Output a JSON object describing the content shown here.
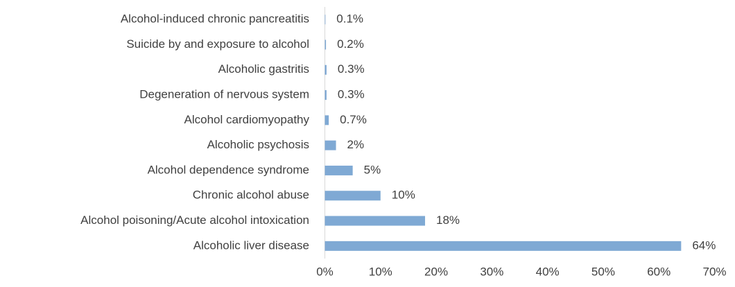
{
  "chart_data": {
    "type": "bar",
    "orientation": "horizontal",
    "categories": [
      "Alcohol-induced chronic pancreatitis",
      "Suicide by and exposure to alcohol",
      "Alcoholic gastritis",
      "Degeneration of nervous system",
      "Alcohol cardiomyopathy",
      "Alcoholic psychosis",
      "Alcohol dependence syndrome",
      "Chronic alcohol abuse",
      "Alcohol poisoning/Acute alcohol intoxication",
      "Alcoholic liver disease"
    ],
    "values": [
      0.1,
      0.2,
      0.3,
      0.3,
      0.7,
      2,
      5,
      10,
      18,
      64
    ],
    "value_labels": [
      "0.1%",
      "0.2%",
      "0.3%",
      "0.3%",
      "0.7%",
      "2%",
      "5%",
      "10%",
      "18%",
      "64%"
    ],
    "color": "#7fa9d4",
    "xlim": [
      0,
      70
    ],
    "xticks": [
      {
        "value": 0,
        "label": "0%"
      },
      {
        "value": 10,
        "label": "10%"
      },
      {
        "value": 20,
        "label": "20%"
      },
      {
        "value": 30,
        "label": "30%"
      },
      {
        "value": 40,
        "label": "40%"
      },
      {
        "value": 50,
        "label": "50%"
      },
      {
        "value": 60,
        "label": "60%"
      },
      {
        "value": 70,
        "label": "70%"
      }
    ],
    "grid": false
  }
}
